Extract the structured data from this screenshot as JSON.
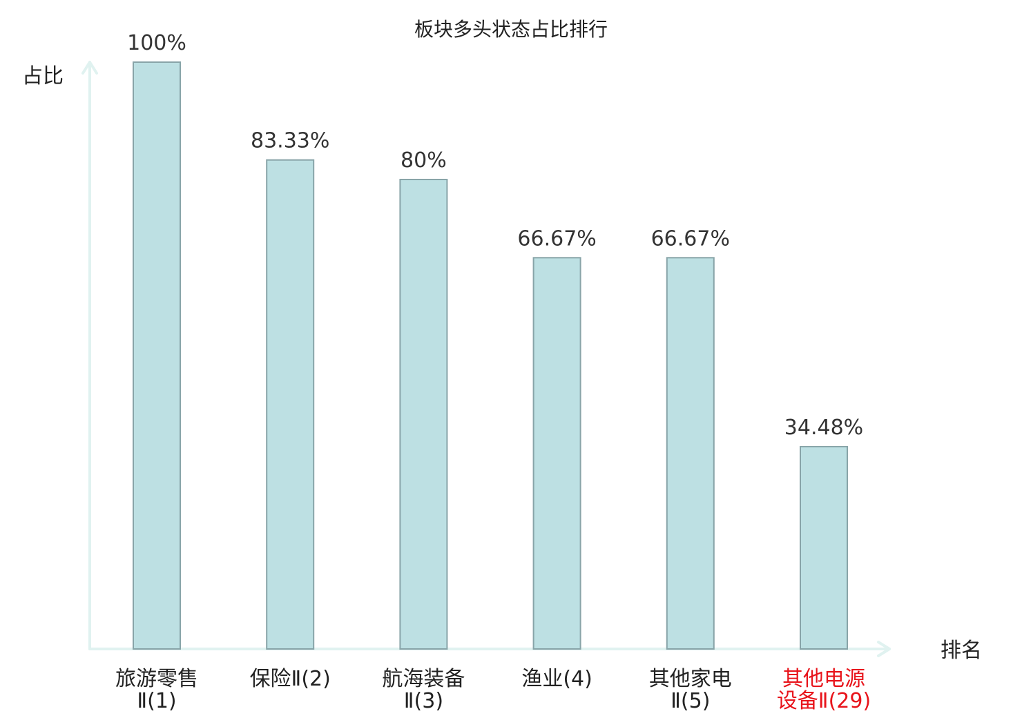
{
  "chart_data": {
    "type": "bar",
    "title": "板块多头状态占比排行",
    "ylabel": "占比",
    "xlabel": "排名",
    "ylim": [
      0,
      100
    ],
    "grid": false,
    "categories": [
      [
        "旅游零售",
        "Ⅱ(1)"
      ],
      [
        "保险Ⅱ(2)"
      ],
      [
        "航海装备",
        "Ⅱ(3)"
      ],
      [
        "渔业(4)"
      ],
      [
        "其他家电",
        "Ⅱ(5)"
      ],
      [
        "其他电源",
        "设备Ⅱ(29)"
      ]
    ],
    "values": [
      100,
      83.33,
      80,
      66.67,
      66.67,
      34.48
    ],
    "value_labels": [
      "100%",
      "83.33%",
      "80%",
      "66.67%",
      "66.67%",
      "34.48%"
    ],
    "highlight_index": 5,
    "colors": {
      "bar_fill": "#bde0e3",
      "bar_stroke": "#88a4a8",
      "axis": "#e0f2f0",
      "label_default": "#222222",
      "label_highlight": "#e8141b",
      "value_text": "#333333"
    }
  }
}
